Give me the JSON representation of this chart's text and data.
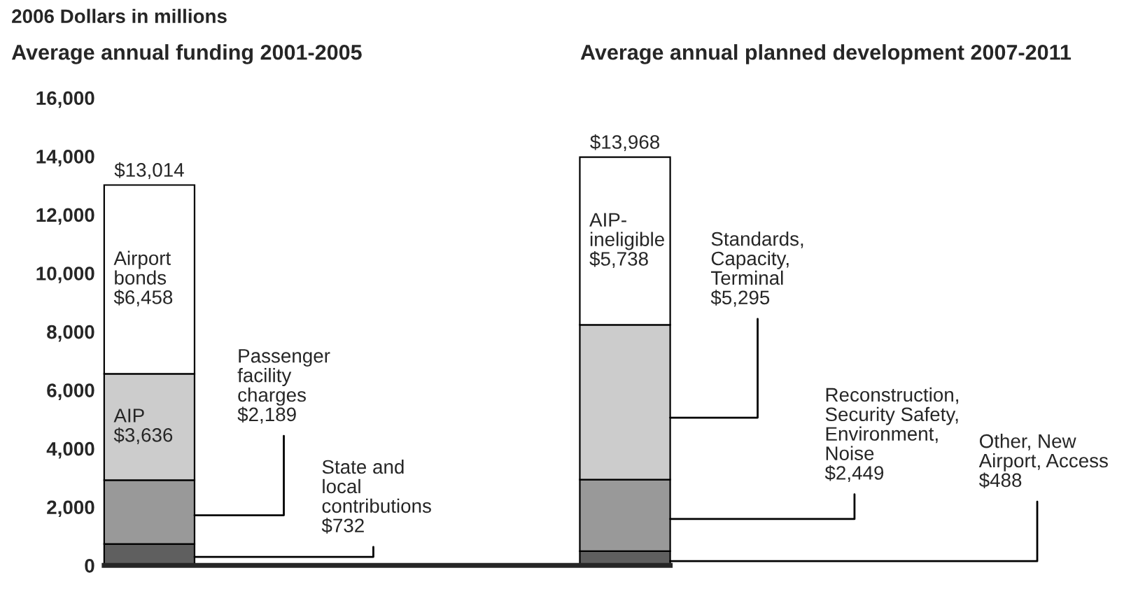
{
  "chart_data": {
    "type": "bar",
    "stacked": true,
    "ylabel": "2006 Dollars in millions",
    "categories": [
      null,
      null
    ],
    "series": [
      {
        "color": "#5f5f5f",
        "values": [
          732,
          488
        ]
      },
      {
        "color": "#999999",
        "values": [
          2189,
          2449
        ]
      },
      {
        "color": "#cccccc",
        "values": [
          3636,
          5295
        ]
      },
      {
        "color": "#ffffff",
        "values": [
          6458,
          5738
        ]
      }
    ],
    "totals": [
      "$13,014",
      "$13,968"
    ],
    "ylim": [
      0,
      16000
    ],
    "yticks": [
      {
        "value": 0,
        "label": "0"
      },
      {
        "value": 2000,
        "label": "2,000"
      },
      {
        "value": 4000,
        "label": "4,000"
      },
      {
        "value": 6000,
        "label": "6,000"
      },
      {
        "value": 8000,
        "label": "8,000"
      },
      {
        "value": 10000,
        "label": "10,000"
      },
      {
        "value": 12000,
        "label": "12,000"
      },
      {
        "value": 14000,
        "label": "14,000"
      },
      {
        "value": 16000,
        "label": "16,000"
      }
    ],
    "annotations": [
      "Average annual funding 2001-2005",
      "Average annual planned development 2007-2011",
      "State and\nlocal\ncontributions\n$732",
      "Passenger\nfacility\ncharges\n$2,189",
      "AIP\n$3,636",
      "Airport\nbonds\n$6,458",
      "Other, New\nAirport, Access\n$488",
      "Reconstruction,\nSecurity Safety,\nEnvironment,\nNoise\n$2,449",
      "Standards,\nCapacity,\nTerminal\n$5,295",
      "AIP-\nineligible\n$5,738"
    ]
  }
}
